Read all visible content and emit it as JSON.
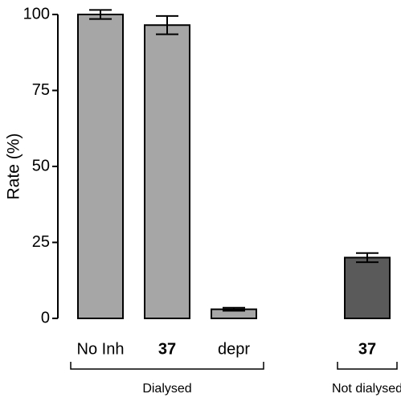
{
  "chart_data": {
    "type": "bar",
    "ylabel": "Rate (%)",
    "ylim": [
      0,
      100
    ],
    "yticks": [
      0,
      25,
      50,
      75,
      100
    ],
    "groups": [
      {
        "name": "Dialysed",
        "color": "#a6a6a6",
        "categories": [
          "No Inh",
          "37",
          "depr"
        ],
        "values": [
          100,
          96.5,
          3
        ],
        "errors": [
          1.5,
          3,
          0.5
        ]
      },
      {
        "name": "Not dialysed",
        "color": "#5a5a5a",
        "categories": [
          "37"
        ],
        "values": [
          20
        ],
        "errors": [
          1.5
        ]
      }
    ]
  }
}
